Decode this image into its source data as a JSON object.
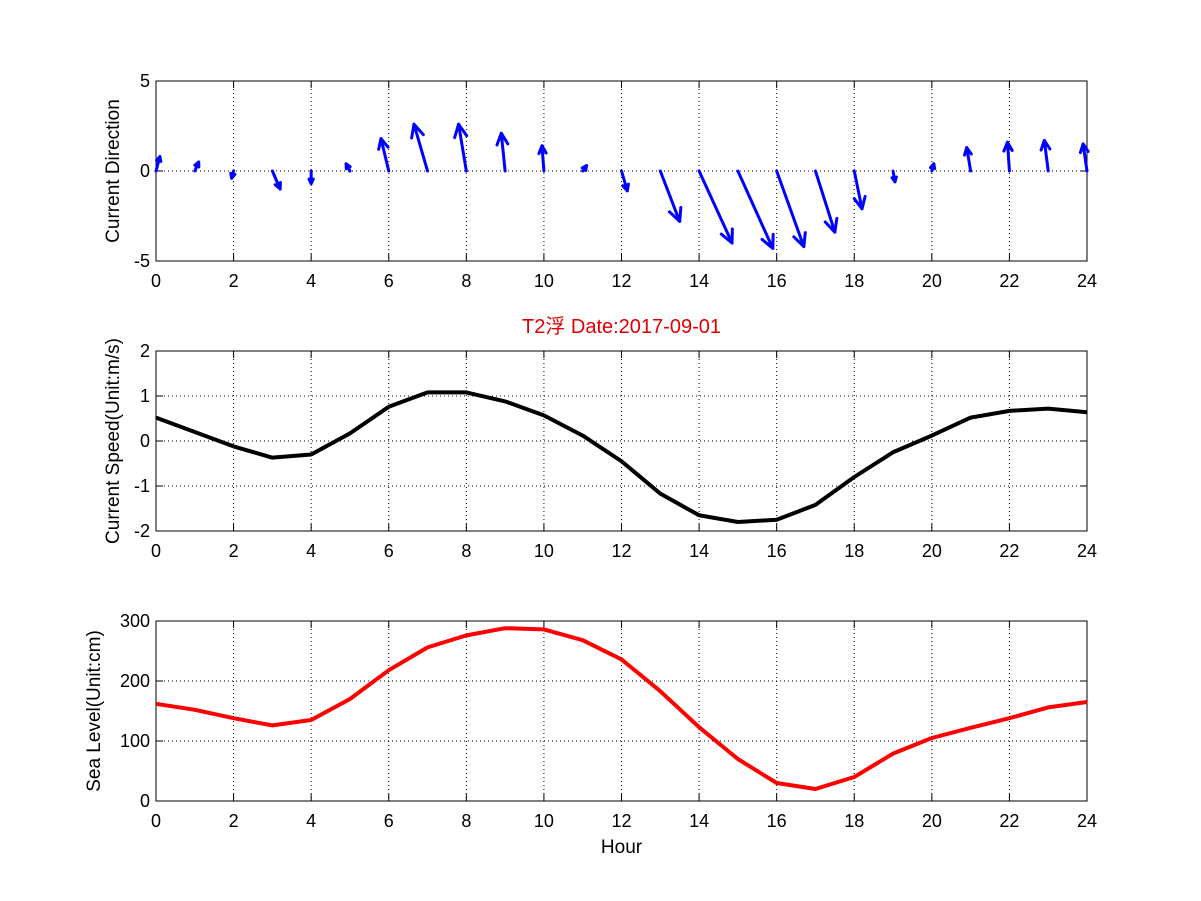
{
  "chart_data": [
    {
      "type": "quiver",
      "title": "",
      "xlabel": "",
      "ylabel": "Current Direction",
      "xlim": [
        0,
        24
      ],
      "ylim": [
        -5,
        5
      ],
      "xticks": [
        0,
        2,
        4,
        6,
        8,
        10,
        12,
        14,
        16,
        18,
        20,
        22,
        24
      ],
      "yticks": [
        -5,
        0,
        5
      ],
      "grid": true,
      "color": "#0000ff",
      "hours": [
        0,
        1,
        2,
        3,
        4,
        5,
        6,
        7,
        8,
        9,
        10,
        11,
        12,
        13,
        14,
        15,
        16,
        17,
        18,
        19,
        20,
        21,
        22,
        23,
        24
      ],
      "u": [
        0.1,
        0.1,
        -0.05,
        0.2,
        0.0,
        -0.1,
        -0.2,
        -0.35,
        -0.2,
        -0.1,
        -0.05,
        0.1,
        0.15,
        0.5,
        0.85,
        0.9,
        0.7,
        0.5,
        0.2,
        0.05,
        0.05,
        -0.1,
        -0.05,
        -0.1,
        -0.1
      ],
      "v": [
        0.8,
        0.5,
        -0.4,
        -1.0,
        -0.7,
        0.4,
        1.8,
        2.6,
        2.6,
        2.1,
        1.4,
        0.3,
        -1.1,
        -2.8,
        -4.0,
        -4.3,
        -4.2,
        -3.4,
        -2.1,
        -0.6,
        0.4,
        1.3,
        1.6,
        1.7,
        1.5
      ]
    },
    {
      "type": "line",
      "title": "T2浮    Date:2017-09-01",
      "xlabel": "",
      "ylabel": "Current Speed(Unit:m/s)",
      "xlim": [
        0,
        24
      ],
      "ylim": [
        -2,
        2
      ],
      "xticks": [
        0,
        2,
        4,
        6,
        8,
        10,
        12,
        14,
        16,
        18,
        20,
        22,
        24
      ],
      "yticks": [
        -2,
        -1,
        0,
        1,
        2
      ],
      "grid": true,
      "color": "#000000",
      "x": [
        0,
        1,
        2,
        3,
        4,
        5,
        6,
        7,
        8,
        9,
        10,
        11,
        12,
        13,
        14,
        15,
        16,
        17,
        18,
        19,
        20,
        21,
        22,
        23,
        24
      ],
      "y": [
        0.52,
        0.2,
        -0.12,
        -0.37,
        -0.3,
        0.17,
        0.76,
        1.08,
        1.08,
        0.88,
        0.57,
        0.12,
        -0.45,
        -1.17,
        -1.65,
        -1.8,
        -1.75,
        -1.42,
        -0.8,
        -0.25,
        0.12,
        0.52,
        0.67,
        0.72,
        0.64
      ]
    },
    {
      "type": "line",
      "title": "",
      "xlabel": "Hour",
      "ylabel": "Sea Level(Unit:cm)",
      "xlim": [
        0,
        24
      ],
      "ylim": [
        0,
        300
      ],
      "xticks": [
        0,
        2,
        4,
        6,
        8,
        10,
        12,
        14,
        16,
        18,
        20,
        22,
        24
      ],
      "yticks": [
        0,
        100,
        200,
        300
      ],
      "grid": true,
      "color": "#ff0000",
      "x": [
        0,
        1,
        2,
        3,
        4,
        5,
        6,
        7,
        8,
        9,
        10,
        11,
        12,
        13,
        14,
        15,
        16,
        17,
        18,
        19,
        20,
        21,
        22,
        23,
        24
      ],
      "y": [
        162,
        152,
        138,
        126,
        135,
        170,
        218,
        256,
        276,
        288,
        286,
        268,
        236,
        183,
        123,
        70,
        30,
        20,
        40,
        79,
        105,
        122,
        138,
        156,
        165
      ]
    }
  ]
}
